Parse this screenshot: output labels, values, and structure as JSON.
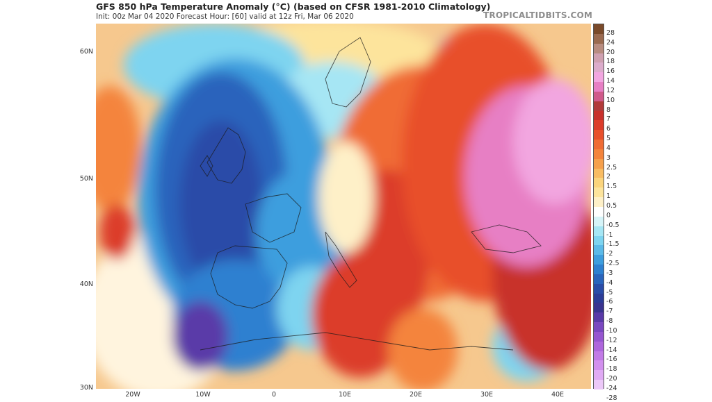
{
  "header": {
    "title": "GFS 850 hPa Temperature Anomaly (°C) (based on CFSR 1981-2010 Climatology)",
    "subtitle": "Init: 00z Mar 04 2020   Forecast Hour: [60]   valid at 12z Fri, Mar 06 2020",
    "brand": "TROPICALTIDBITS.COM"
  },
  "axes": {
    "lat_labels": [
      "60N",
      "50N",
      "40N",
      "30N"
    ],
    "lon_labels": [
      "20W",
      "10W",
      "0",
      "10E",
      "20E",
      "30E",
      "40E"
    ]
  },
  "colorbar": {
    "labels": [
      "28",
      "24",
      "20",
      "18",
      "16",
      "14",
      "12",
      "10",
      "8",
      "7",
      "6",
      "5",
      "4",
      "3",
      "2.5",
      "2",
      "1.5",
      "1",
      "0.5",
      "0",
      "-0.5",
      "-1",
      "-1.5",
      "-2",
      "-2.5",
      "-3",
      "-4",
      "-5",
      "-6",
      "-7",
      "-8",
      "-10",
      "-12",
      "-14",
      "-16",
      "-18",
      "-20",
      "-24",
      "-28"
    ],
    "colors": [
      "#7a4a2a",
      "#9a6a50",
      "#b88c80",
      "#cfa0b0",
      "#dcaccb",
      "#f2a6e0",
      "#e77fc4",
      "#d05a8a",
      "#b23a3a",
      "#c8302c",
      "#dc3c2a",
      "#e8502c",
      "#f06c34",
      "#f4843c",
      "#f6a04c",
      "#f9bc62",
      "#fbd47c",
      "#fde49c",
      "#fef0c8",
      "#ffffff",
      "#d6f4f8",
      "#a6e6f4",
      "#7ed4f0",
      "#5cbae8",
      "#3e9ede",
      "#2e80d0",
      "#2a64bc",
      "#2a4ca8",
      "#2c3c98",
      "#3a3490",
      "#5a3aa8",
      "#7a48c0",
      "#9656d0",
      "#ae66dc",
      "#c27ae6",
      "#d290ee",
      "#e0aaf4",
      "#ecc8f8"
    ]
  },
  "map_features": {
    "cold_anomaly_region": "western Europe / Atlantic",
    "warm_anomaly_region": "eastern Europe / Russia",
    "colors": {
      "deep_cold": "#2a4ca8",
      "cold": "#5cbae8",
      "neutral": "#ffffff",
      "warm": "#e8502c",
      "hot": "#f2a6e0"
    }
  }
}
